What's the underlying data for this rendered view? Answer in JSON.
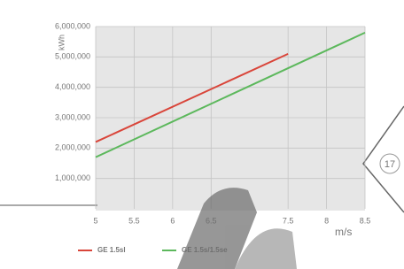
{
  "chart_data": {
    "type": "line",
    "y_label": "kWh",
    "x_label": "m/s",
    "xlim": [
      5,
      8.5
    ],
    "ylim": [
      0,
      6000000
    ],
    "xticks": [
      5,
      5.5,
      6,
      6.5,
      7.5,
      8,
      8.5
    ],
    "yticks": [
      {
        "value": 1000000,
        "label": "1,000,000"
      },
      {
        "value": 2000000,
        "label": "2,000,000"
      },
      {
        "value": 3000000,
        "label": "3,000,000"
      },
      {
        "value": 4000000,
        "label": "4,000,000"
      },
      {
        "value": 5000000,
        "label": "5,000,000"
      },
      {
        "value": 6000000,
        "label": "6,000,000"
      }
    ],
    "grid": true,
    "series": [
      {
        "name": "GE 1.5sl",
        "color": "#d9453a",
        "x": [
          5,
          7.5
        ],
        "values": [
          2200000,
          5100000
        ]
      },
      {
        "name": "GE 1.5s/1.5se",
        "color": "#5cb85c",
        "x": [
          5,
          8.5
        ],
        "values": [
          1700000,
          5800000
        ]
      }
    ]
  },
  "page_number": "17"
}
